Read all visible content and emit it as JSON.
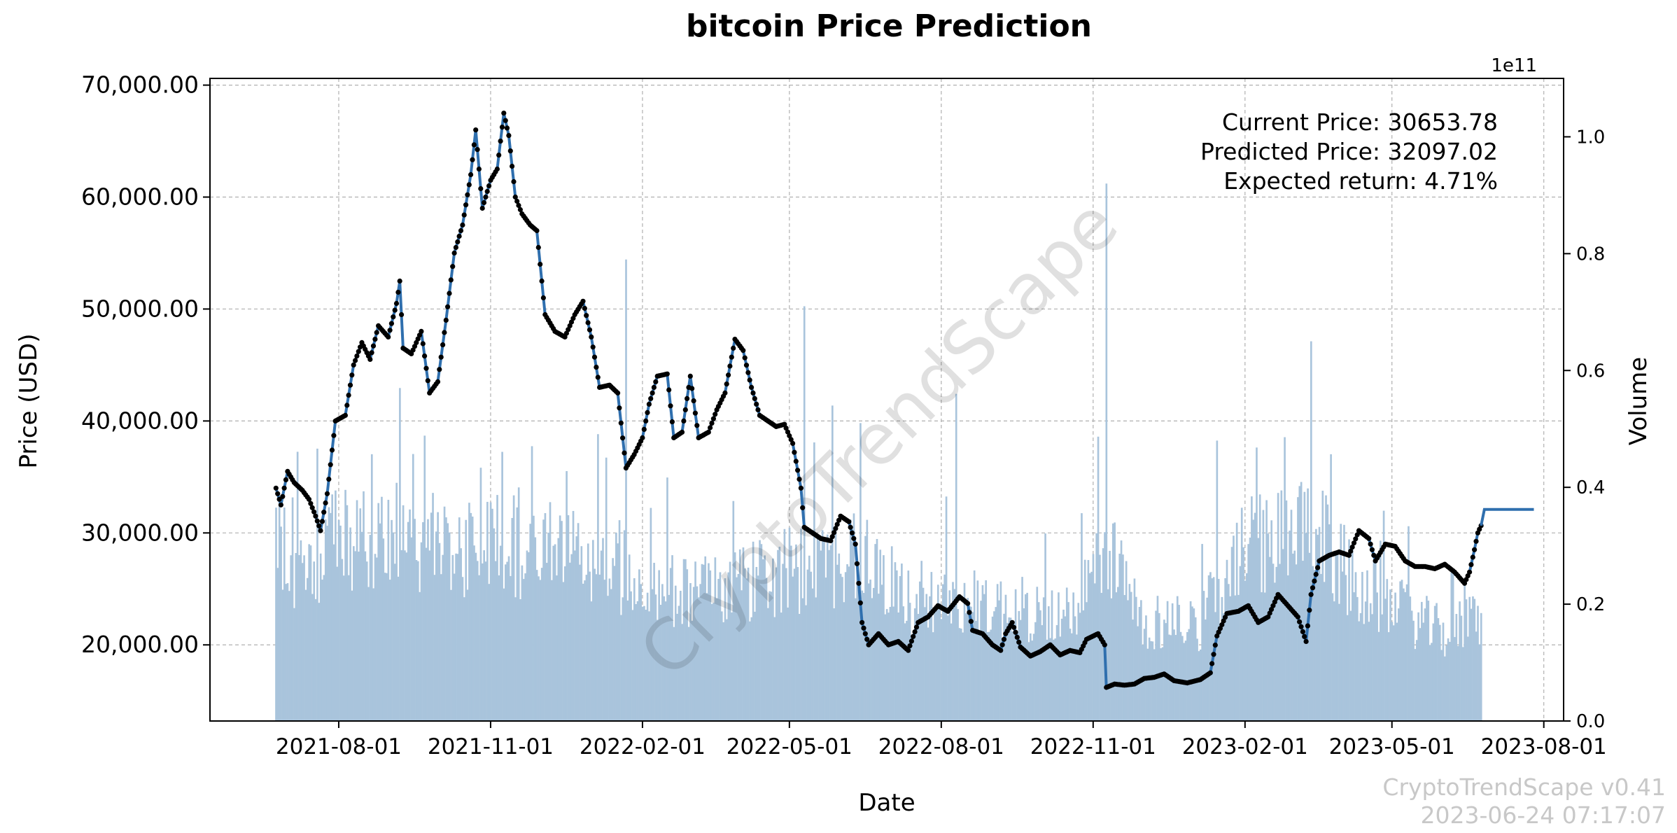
{
  "chart_data": {
    "type": "line",
    "title": "bitcoin Price Prediction",
    "xlabel": "Date",
    "ylabel": "Price (USD)",
    "y2label": "Volume",
    "y2_offset_label": "1e11",
    "x_range": [
      "2021-05-15",
      "2023-08-13"
    ],
    "ylim": [
      13200,
      70600
    ],
    "y2lim": [
      0,
      1.1
    ],
    "grid": true,
    "x_ticks": [
      "2021-08-01",
      "2021-11-01",
      "2022-02-01",
      "2022-05-01",
      "2022-08-01",
      "2022-11-01",
      "2023-02-01",
      "2023-05-01",
      "2023-08-01"
    ],
    "y_ticks": [
      {
        "value": 20000,
        "label": "20,000.00"
      },
      {
        "value": 30000,
        "label": "30,000.00"
      },
      {
        "value": 40000,
        "label": "40,000.00"
      },
      {
        "value": 50000,
        "label": "50,000.00"
      },
      {
        "value": 60000,
        "label": "60,000.00"
      },
      {
        "value": 70000,
        "label": "70,000.00"
      }
    ],
    "y2_ticks": [
      "0.0",
      "0.2",
      "0.4",
      "0.6",
      "0.8",
      "1.0"
    ],
    "price_series": {
      "name": "Price",
      "color": "#2f6fae",
      "marker_color": "#000000",
      "points": [
        [
          "2021-06-24",
          34000
        ],
        [
          "2021-06-27",
          32500
        ],
        [
          "2021-07-01",
          35500
        ],
        [
          "2021-07-05",
          34500
        ],
        [
          "2021-07-10",
          33800
        ],
        [
          "2021-07-14",
          33000
        ],
        [
          "2021-07-18",
          31500
        ],
        [
          "2021-07-21",
          30200
        ],
        [
          "2021-07-25",
          33500
        ],
        [
          "2021-07-30",
          40000
        ],
        [
          "2021-08-05",
          40500
        ],
        [
          "2021-08-10",
          45000
        ],
        [
          "2021-08-15",
          47000
        ],
        [
          "2021-08-20",
          45500
        ],
        [
          "2021-08-25",
          48500
        ],
        [
          "2021-08-31",
          47500
        ],
        [
          "2021-09-05",
          50500
        ],
        [
          "2021-09-07",
          52500
        ],
        [
          "2021-09-09",
          46500
        ],
        [
          "2021-09-14",
          46000
        ],
        [
          "2021-09-20",
          48000
        ],
        [
          "2021-09-25",
          42500
        ],
        [
          "2021-09-30",
          43500
        ],
        [
          "2021-10-05",
          49000
        ],
        [
          "2021-10-10",
          55000
        ],
        [
          "2021-10-15",
          57500
        ],
        [
          "2021-10-20",
          62000
        ],
        [
          "2021-10-23",
          66000
        ],
        [
          "2021-10-27",
          59000
        ],
        [
          "2021-11-01",
          61500
        ],
        [
          "2021-11-05",
          62500
        ],
        [
          "2021-11-09",
          67500
        ],
        [
          "2021-11-12",
          65500
        ],
        [
          "2021-11-16",
          60000
        ],
        [
          "2021-11-20",
          58500
        ],
        [
          "2021-11-25",
          57500
        ],
        [
          "2021-11-29",
          57000
        ],
        [
          "2021-12-04",
          49500
        ],
        [
          "2021-12-10",
          48000
        ],
        [
          "2021-12-16",
          47500
        ],
        [
          "2021-12-22",
          49500
        ],
        [
          "2021-12-27",
          50700
        ],
        [
          "2022-01-01",
          47500
        ],
        [
          "2022-01-06",
          43000
        ],
        [
          "2022-01-12",
          43200
        ],
        [
          "2022-01-17",
          42500
        ],
        [
          "2022-01-22",
          35800
        ],
        [
          "2022-01-27",
          37000
        ],
        [
          "2022-02-01",
          38500
        ],
        [
          "2022-02-05",
          41500
        ],
        [
          "2022-02-10",
          44000
        ],
        [
          "2022-02-16",
          44200
        ],
        [
          "2022-02-20",
          38500
        ],
        [
          "2022-02-25",
          39000
        ],
        [
          "2022-03-02",
          44000
        ],
        [
          "2022-03-07",
          38500
        ],
        [
          "2022-03-13",
          39000
        ],
        [
          "2022-03-18",
          41000
        ],
        [
          "2022-03-23",
          42500
        ],
        [
          "2022-03-29",
          47300
        ],
        [
          "2022-04-03",
          46300
        ],
        [
          "2022-04-08",
          43000
        ],
        [
          "2022-04-13",
          40500
        ],
        [
          "2022-04-18",
          40000
        ],
        [
          "2022-04-23",
          39500
        ],
        [
          "2022-04-28",
          39700
        ],
        [
          "2022-05-03",
          38000
        ],
        [
          "2022-05-08",
          34000
        ],
        [
          "2022-05-10",
          30500
        ],
        [
          "2022-05-15",
          30000
        ],
        [
          "2022-05-20",
          29500
        ],
        [
          "2022-05-26",
          29300
        ],
        [
          "2022-06-01",
          31500
        ],
        [
          "2022-06-06",
          31000
        ],
        [
          "2022-06-10",
          29000
        ],
        [
          "2022-06-14",
          22000
        ],
        [
          "2022-06-18",
          20000
        ],
        [
          "2022-06-24",
          21000
        ],
        [
          "2022-06-30",
          20000
        ],
        [
          "2022-07-06",
          20300
        ],
        [
          "2022-07-12",
          19500
        ],
        [
          "2022-07-18",
          22000
        ],
        [
          "2022-07-24",
          22500
        ],
        [
          "2022-07-30",
          23500
        ],
        [
          "2022-08-05",
          23000
        ],
        [
          "2022-08-12",
          24300
        ],
        [
          "2022-08-17",
          23700
        ],
        [
          "2022-08-20",
          21300
        ],
        [
          "2022-08-26",
          21000
        ],
        [
          "2022-09-01",
          20000
        ],
        [
          "2022-09-06",
          19500
        ],
        [
          "2022-09-09",
          21000
        ],
        [
          "2022-09-13",
          22000
        ],
        [
          "2022-09-18",
          19800
        ],
        [
          "2022-09-24",
          19000
        ],
        [
          "2022-09-30",
          19400
        ],
        [
          "2022-10-06",
          20000
        ],
        [
          "2022-10-12",
          19100
        ],
        [
          "2022-10-18",
          19500
        ],
        [
          "2022-10-24",
          19300
        ],
        [
          "2022-10-28",
          20500
        ],
        [
          "2022-11-04",
          21000
        ],
        [
          "2022-11-08",
          20000
        ],
        [
          "2022-11-09",
          16200
        ],
        [
          "2022-11-14",
          16500
        ],
        [
          "2022-11-20",
          16400
        ],
        [
          "2022-11-26",
          16500
        ],
        [
          "2022-12-02",
          17000
        ],
        [
          "2022-12-08",
          17100
        ],
        [
          "2022-12-14",
          17400
        ],
        [
          "2022-12-20",
          16800
        ],
        [
          "2022-12-28",
          16600
        ],
        [
          "2023-01-05",
          16900
        ],
        [
          "2023-01-11",
          17500
        ],
        [
          "2023-01-15",
          20800
        ],
        [
          "2023-01-21",
          22800
        ],
        [
          "2023-01-28",
          23000
        ],
        [
          "2023-02-03",
          23500
        ],
        [
          "2023-02-09",
          22000
        ],
        [
          "2023-02-15",
          22500
        ],
        [
          "2023-02-21",
          24500
        ],
        [
          "2023-02-27",
          23500
        ],
        [
          "2023-03-05",
          22500
        ],
        [
          "2023-03-10",
          20300
        ],
        [
          "2023-03-13",
          24500
        ],
        [
          "2023-03-18",
          27500
        ],
        [
          "2023-03-24",
          28000
        ],
        [
          "2023-03-30",
          28300
        ],
        [
          "2023-04-05",
          28000
        ],
        [
          "2023-04-11",
          30200
        ],
        [
          "2023-04-17",
          29500
        ],
        [
          "2023-04-21",
          27500
        ],
        [
          "2023-04-27",
          29000
        ],
        [
          "2023-05-03",
          28800
        ],
        [
          "2023-05-09",
          27500
        ],
        [
          "2023-05-15",
          27000
        ],
        [
          "2023-05-21",
          27000
        ],
        [
          "2023-05-27",
          26800
        ],
        [
          "2023-06-02",
          27200
        ],
        [
          "2023-06-08",
          26500
        ],
        [
          "2023-06-14",
          25500
        ],
        [
          "2023-06-17",
          26500
        ],
        [
          "2023-06-20",
          28500
        ],
        [
          "2023-06-22",
          30000
        ],
        [
          "2023-06-24",
          30654
        ]
      ]
    },
    "prediction_series": {
      "name": "Prediction",
      "color": "#2f6fae",
      "points": [
        [
          "2023-06-24",
          30654
        ],
        [
          "2023-06-26",
          32097
        ],
        [
          "2023-07-26",
          32097
        ]
      ]
    },
    "volume_series": {
      "name": "Volume",
      "color": "#a9c4dc",
      "start": "2021-06-24",
      "end": "2023-06-24",
      "profile": [
        [
          "2021-06-24",
          0.32
        ],
        [
          "2021-07-10",
          0.24
        ],
        [
          "2021-07-28",
          0.3
        ],
        [
          "2021-09-01",
          0.32
        ],
        [
          "2021-10-01",
          0.3
        ],
        [
          "2021-11-15",
          0.3
        ],
        [
          "2022-01-01",
          0.27
        ],
        [
          "2022-03-01",
          0.22
        ],
        [
          "2022-05-10",
          0.26
        ],
        [
          "2022-06-15",
          0.28
        ],
        [
          "2022-07-15",
          0.2
        ],
        [
          "2022-08-20",
          0.2
        ],
        [
          "2022-10-20",
          0.18
        ],
        [
          "2022-11-10",
          0.3
        ],
        [
          "2022-12-01",
          0.17
        ],
        [
          "2023-01-05",
          0.17
        ],
        [
          "2023-02-01",
          0.3
        ],
        [
          "2023-03-15",
          0.32
        ],
        [
          "2023-04-15",
          0.22
        ],
        [
          "2023-06-01",
          0.15
        ],
        [
          "2023-06-24",
          0.18
        ]
      ],
      "spikes": [
        [
          "2021-09-07",
          0.57
        ],
        [
          "2022-01-22",
          0.79
        ],
        [
          "2022-05-10",
          0.71
        ],
        [
          "2022-06-13",
          0.51
        ],
        [
          "2022-08-10",
          0.56
        ],
        [
          "2022-11-09",
          0.92
        ],
        [
          "2023-01-15",
          0.48
        ],
        [
          "2023-03-13",
          0.65
        ]
      ]
    },
    "annotations": [
      "Current Price: 30653.78",
      "Predicted Price: 32097.02",
      "Expected return: 4.71%"
    ],
    "watermark": "CryptoTrendScape",
    "footer": [
      "CryptoTrendScape v0.41",
      "2023-06-24 07:17:07"
    ]
  }
}
